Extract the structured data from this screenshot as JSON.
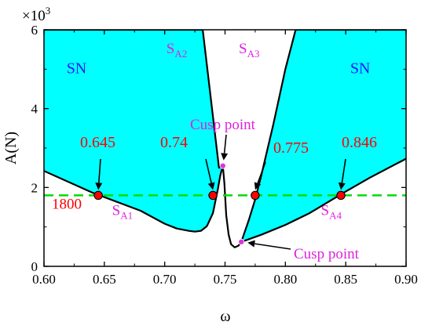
{
  "chart_data": {
    "type": "area",
    "xlabel": "ω",
    "ylabel": "A(N)",
    "y_multiplier_label": "×10",
    "y_multiplier_exp": "3",
    "xlim": [
      0.6,
      0.9
    ],
    "ylim": [
      0,
      6000
    ],
    "xticks": [
      0.6,
      0.65,
      0.7,
      0.75,
      0.8,
      0.85,
      0.9
    ],
    "xtick_labels": [
      "0.60",
      "0.65",
      "0.70",
      "0.75",
      "0.80",
      "0.85",
      "0.90"
    ],
    "yticks": [
      0,
      2000,
      4000,
      6000
    ],
    "ytick_labels": [
      "0",
      "2",
      "4",
      "6"
    ],
    "colors": {
      "fill": "#00ffff",
      "boundary": "#000000",
      "dashed": "#00dd00",
      "marker": "#ff0000",
      "cusp": "#dd33dd",
      "region_label": "#1a1aff",
      "value_label": "#ff0000",
      "curve_label": "#dd22dd"
    },
    "left_region": {
      "boundary_top": [
        [
          0.6,
          6000
        ],
        [
          0.7315,
          6000
        ],
        [
          0.745,
          2500
        ],
        [
          0.7482,
          2550
        ]
      ],
      "boundary_bottom": [
        [
          0.6,
          2420
        ],
        [
          0.64,
          1870
        ],
        [
          0.68,
          1410
        ],
        [
          0.7,
          1080
        ],
        [
          0.71,
          960
        ],
        [
          0.72,
          900
        ],
        [
          0.725,
          880
        ],
        [
          0.73,
          900
        ],
        [
          0.735,
          1020
        ],
        [
          0.74,
          1350
        ],
        [
          0.744,
          1950
        ],
        [
          0.746,
          2300
        ],
        [
          0.7482,
          2550
        ]
      ]
    },
    "right_region": {
      "boundary_top": [
        [
          0.7635,
          620
        ],
        [
          0.77,
          1200
        ],
        [
          0.775,
          1700
        ],
        [
          0.78,
          2300
        ],
        [
          0.79,
          3600
        ],
        [
          0.8,
          5000
        ],
        [
          0.8085,
          6000
        ],
        [
          0.9,
          6000
        ]
      ],
      "boundary_bottom": [
        [
          0.7635,
          620
        ],
        [
          0.78,
          800
        ],
        [
          0.8,
          1050
        ],
        [
          0.82,
          1350
        ],
        [
          0.85,
          1900
        ],
        [
          0.87,
          2250
        ],
        [
          0.9,
          2730
        ]
      ]
    },
    "connector_curve": [
      [
        0.7482,
        2550
      ],
      [
        0.7495,
        2100
      ],
      [
        0.751,
        1300
      ],
      [
        0.753,
        800
      ],
      [
        0.755,
        560
      ],
      [
        0.758,
        480
      ],
      [
        0.761,
        520
      ],
      [
        0.7635,
        620
      ]
    ],
    "dashed_line": {
      "y": 1800,
      "label": "1800"
    },
    "intersection_points": [
      {
        "x": 0.645,
        "y": 1800,
        "label": "0.645"
      },
      {
        "x": 0.74,
        "y": 1800,
        "label": "0.74"
      },
      {
        "x": 0.775,
        "y": 1800,
        "label": "0.775"
      },
      {
        "x": 0.846,
        "y": 1800,
        "label": "0.846"
      }
    ],
    "cusp_points": [
      {
        "x": 0.7482,
        "y": 2550,
        "label": "Cusp point"
      },
      {
        "x": 0.7635,
        "y": 620,
        "label": "Cusp point"
      }
    ],
    "region_labels": [
      {
        "text": "SN",
        "x": 0.627,
        "y": 4900
      },
      {
        "text": "SN",
        "x": 0.862,
        "y": 4900
      }
    ],
    "curve_labels": [
      {
        "main": "S",
        "sub": "A1",
        "x": 0.665,
        "y": 1300
      },
      {
        "main": "S",
        "sub": "A2",
        "x": 0.71,
        "y": 5400
      },
      {
        "main": "S",
        "sub": "A3",
        "x": 0.77,
        "y": 5400
      },
      {
        "main": "S",
        "sub": "A4",
        "x": 0.838,
        "y": 1300
      }
    ]
  }
}
